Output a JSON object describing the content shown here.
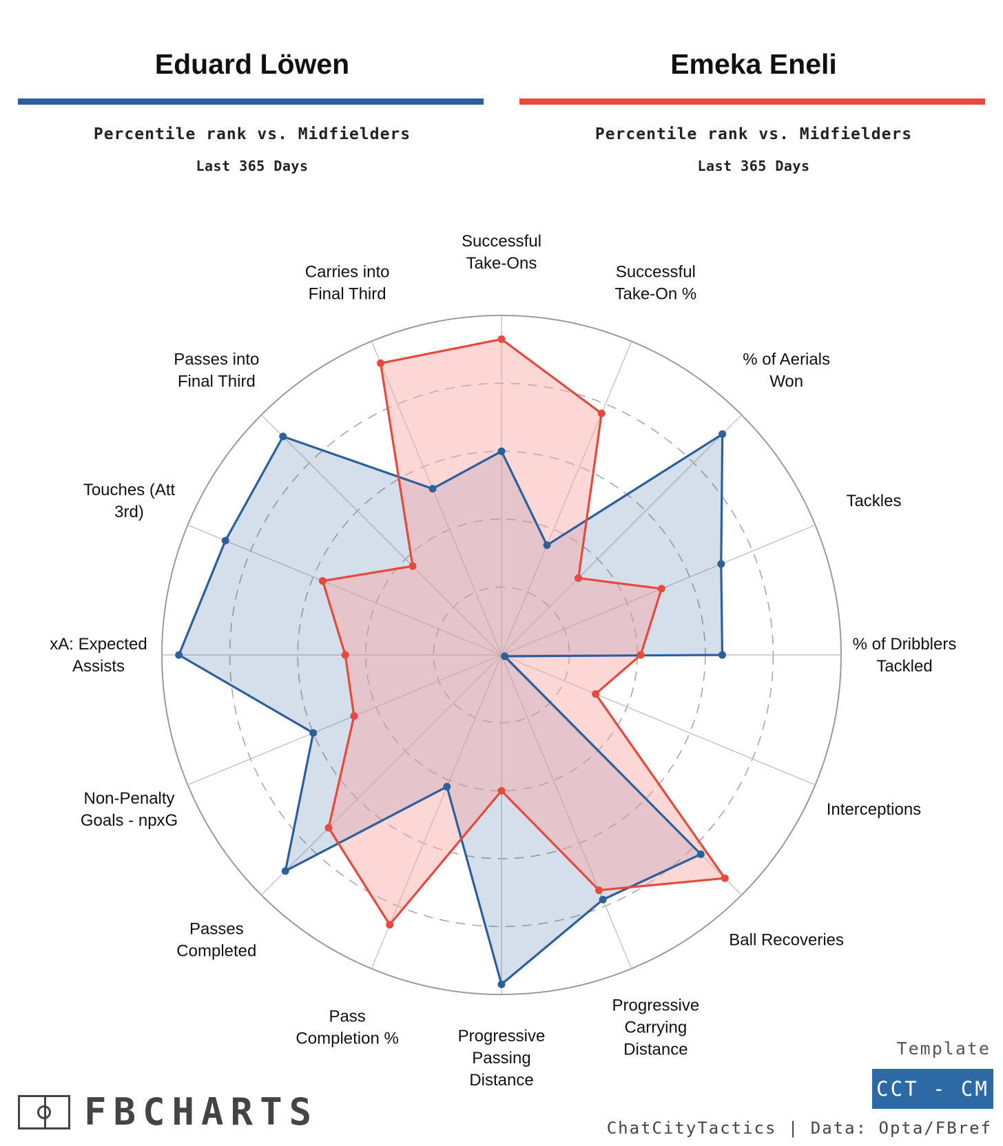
{
  "players": [
    {
      "name": "Eduard Löwen",
      "subtitle": "Percentile rank vs. Midfielders",
      "period": "Last 365 Days",
      "color": "#2d5f9a",
      "fill": "#2d5f9a"
    },
    {
      "name": "Emeka Eneli",
      "subtitle": "Percentile rank vs. Midfielders",
      "period": "Last 365 Days",
      "color": "#e8493d",
      "fill": "#f8a7a4"
    }
  ],
  "chart_data": {
    "type": "radar",
    "range": [
      0,
      100
    ],
    "grid_rings": [
      20,
      40,
      60,
      80,
      100
    ],
    "metrics": [
      "Successful\nTake-Ons",
      "Successful\nTake-On %",
      "% of Aerials\nWon",
      "Tackles",
      "% of Dribblers\nTackled",
      "Interceptions",
      "Ball Recoveries",
      "Progressive\nCarrying\nDistance",
      "Progressive\nPassing\nDistance",
      "Pass\nCompletion %",
      "Passes\nCompleted",
      "Non-Penalty\nGoals - npxG",
      "xA: Expected\nAssists",
      "Touches (Att\n3rd)",
      "Passes into\nFinal Third",
      "Carries into\nFinal Third"
    ],
    "series": [
      {
        "name": "Eduard Löwen",
        "values": [
          60,
          35,
          92,
          70,
          65,
          1,
          83,
          78,
          97,
          42,
          90,
          60,
          95,
          88,
          91,
          53
        ]
      },
      {
        "name": "Emeka Eneli",
        "values": [
          93,
          77,
          32,
          51,
          41,
          30,
          93,
          75,
          40,
          86,
          72,
          47,
          46,
          57,
          37,
          93
        ]
      }
    ]
  },
  "footer": {
    "brand": "FBCHARTS",
    "template_label": "Template",
    "template_badge": "CCT - CM",
    "badge_color": "#2d6aa5",
    "credit": "ChatCityTactics | Data: Opta/FBref"
  }
}
